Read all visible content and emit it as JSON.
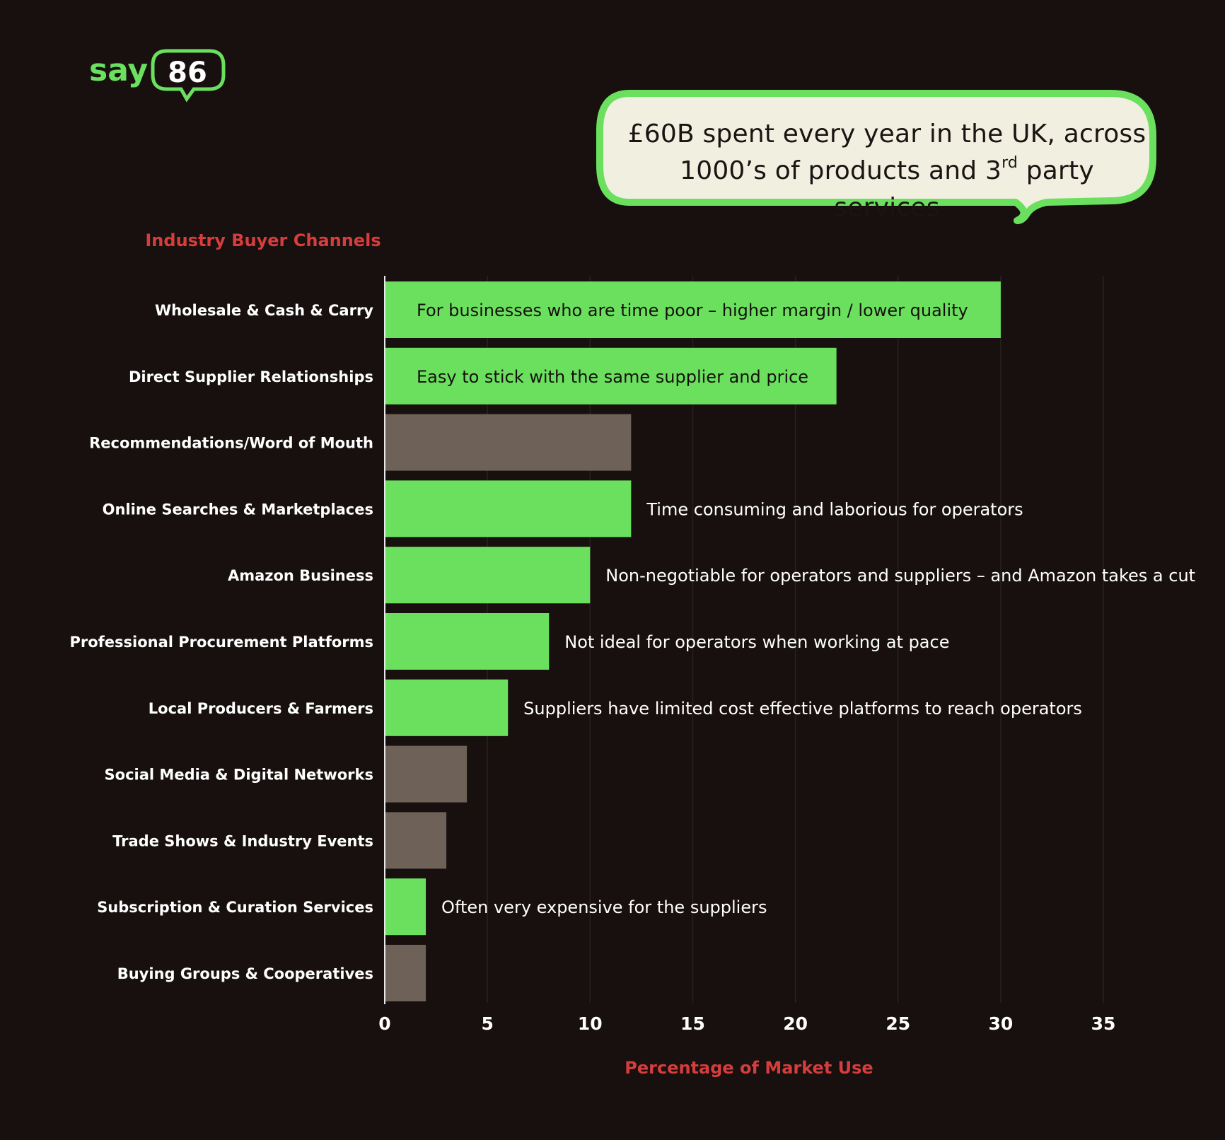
{
  "brand": {
    "logo_text": "say86"
  },
  "callout": {
    "line1": "£60B spent every year in the UK, across",
    "line2_prefix": "1000’s of products and 3",
    "line2_sup": "rd",
    "line2_suffix": " party services"
  },
  "chart_data": {
    "type": "bar",
    "orientation": "horizontal",
    "ylabel": "Industry Buyer Channels",
    "xlabel": "Percentage of Market Use",
    "xlim": [
      0,
      35
    ],
    "xticks": [
      0,
      5,
      10,
      15,
      20,
      25,
      30,
      35
    ],
    "grid": "vertical",
    "colors": {
      "highlight": "#6be05f",
      "muted": "#6e6157",
      "axis_title": "#d63d3d",
      "background": "#17100e"
    },
    "categories": [
      "Wholesale & Cash & Carry",
      "Direct Supplier Relationships",
      "Recommendations/Word of Mouth",
      "Online Searches & Marketplaces",
      "Amazon Business",
      "Professional Procurement Platforms",
      "Local Producers & Farmers",
      "Social Media & Digital Networks",
      "Trade Shows & Industry Events",
      "Subscription & Curation Services",
      "Buying Groups & Cooperatives"
    ],
    "values": [
      30,
      22,
      12,
      12,
      10,
      8,
      6,
      4,
      3,
      2,
      2
    ],
    "highlighted": [
      true,
      true,
      false,
      true,
      true,
      true,
      true,
      false,
      false,
      true,
      false
    ],
    "annotations": [
      "For businesses who are time poor – higher margin / lower quality",
      "Easy to stick with the same supplier and price",
      "",
      "Time consuming and laborious for operators",
      "Non-negotiable for operators and suppliers – and Amazon takes a cut",
      "Not ideal for operators when working at pace",
      "Suppliers have limited cost effective platforms to reach operators",
      "",
      "",
      "Often very expensive for the suppliers",
      ""
    ],
    "annotation_inside_bar": [
      true,
      true,
      false,
      false,
      false,
      false,
      false,
      false,
      false,
      false,
      false
    ]
  }
}
